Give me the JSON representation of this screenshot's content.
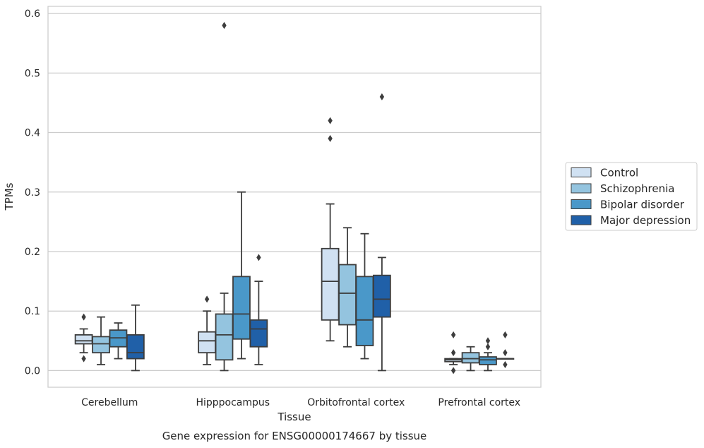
{
  "chart_data": {
    "type": "box",
    "xlabel": "Tissue",
    "ylabel": "TPMs",
    "caption": "Gene expression for ENSG00000174667 by tissue",
    "ylim": [
      -0.028,
      0.612
    ],
    "yticks": [
      "0.0",
      "0.1",
      "0.2",
      "0.3",
      "0.4",
      "0.5",
      "0.6"
    ],
    "ytick_values": [
      0,
      0.1,
      0.2,
      0.3,
      0.4,
      0.5,
      0.6
    ],
    "grid": "horizontal",
    "legend_position": "right",
    "categories": [
      "Cerebellum",
      "Hipppocampus",
      "Orbitofrontal cortex",
      "Prefrontal cortex"
    ],
    "series": [
      {
        "name": "Control",
        "color": "#d0e1f2",
        "boxes": [
          {
            "whislo": 0.03,
            "q1": 0.045,
            "med": 0.05,
            "q3": 0.06,
            "whishi": 0.07,
            "fliers": [
              0.09,
              0.02
            ]
          },
          {
            "whislo": 0.01,
            "q1": 0.03,
            "med": 0.05,
            "q3": 0.065,
            "whishi": 0.1,
            "fliers": [
              0.12
            ]
          },
          {
            "whislo": 0.05,
            "q1": 0.085,
            "med": 0.15,
            "q3": 0.205,
            "whishi": 0.28,
            "fliers": [
              0.42,
              0.39
            ]
          },
          {
            "whislo": 0.01,
            "q1": 0.015,
            "med": 0.018,
            "q3": 0.02,
            "whishi": 0.02,
            "fliers": [
              0.06,
              0.03,
              0.0
            ]
          }
        ]
      },
      {
        "name": "Schizophrenia",
        "color": "#94c4df",
        "boxes": [
          {
            "whislo": 0.01,
            "q1": 0.03,
            "med": 0.045,
            "q3": 0.057,
            "whishi": 0.09,
            "fliers": []
          },
          {
            "whislo": 0.0,
            "q1": 0.018,
            "med": 0.06,
            "q3": 0.095,
            "whishi": 0.13,
            "fliers": [
              0.58
            ]
          },
          {
            "whislo": 0.04,
            "q1": 0.077,
            "med": 0.13,
            "q3": 0.178,
            "whishi": 0.24,
            "fliers": []
          },
          {
            "whislo": 0.0,
            "q1": 0.013,
            "med": 0.02,
            "q3": 0.03,
            "whishi": 0.04,
            "fliers": []
          }
        ]
      },
      {
        "name": "Bipolar disorder",
        "color": "#4a98c9",
        "boxes": [
          {
            "whislo": 0.02,
            "q1": 0.04,
            "med": 0.055,
            "q3": 0.068,
            "whishi": 0.08,
            "fliers": []
          },
          {
            "whislo": 0.02,
            "q1": 0.053,
            "med": 0.095,
            "q3": 0.158,
            "whishi": 0.3,
            "fliers": []
          },
          {
            "whislo": 0.02,
            "q1": 0.042,
            "med": 0.085,
            "q3": 0.158,
            "whishi": 0.23,
            "fliers": []
          },
          {
            "whislo": 0.0,
            "q1": 0.01,
            "med": 0.018,
            "q3": 0.023,
            "whishi": 0.03,
            "fliers": [
              0.05,
              0.04
            ]
          }
        ]
      },
      {
        "name": "Major depression",
        "color": "#2060a8",
        "boxes": [
          {
            "whislo": 0.0,
            "q1": 0.02,
            "med": 0.03,
            "q3": 0.06,
            "whishi": 0.11,
            "fliers": []
          },
          {
            "whislo": 0.01,
            "q1": 0.04,
            "med": 0.07,
            "q3": 0.085,
            "whishi": 0.15,
            "fliers": [
              0.19
            ]
          },
          {
            "whislo": 0.0,
            "q1": 0.09,
            "med": 0.12,
            "q3": 0.16,
            "whishi": 0.19,
            "fliers": [
              0.46
            ]
          },
          {
            "whislo": 0.02,
            "q1": 0.02,
            "med": 0.02,
            "q3": 0.02,
            "whishi": 0.02,
            "fliers": [
              0.06,
              0.03,
              0.01
            ]
          }
        ]
      }
    ]
  }
}
